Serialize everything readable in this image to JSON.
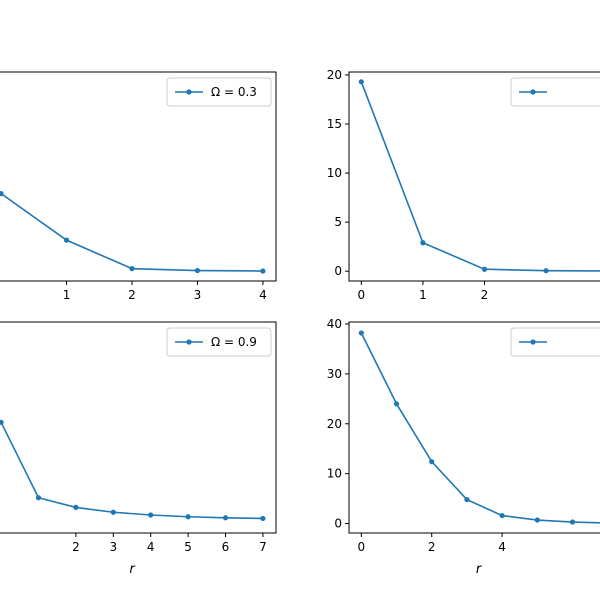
{
  "chart_data": [
    {
      "type": "line",
      "position": "top-left",
      "x": [
        0,
        1,
        2,
        3,
        4
      ],
      "xticks": [
        1,
        2,
        3,
        4
      ],
      "yticks": [],
      "xlim": [
        -0.2,
        4.2
      ],
      "ylim": [
        -1.0,
        21.0
      ],
      "series": [
        {
          "name": "Ω = 0.3",
          "values": [
            8.2,
            3.3,
            0.3,
            0.1,
            0.05
          ]
        }
      ],
      "xlabel": "",
      "ylabel": "",
      "legend": "upper right",
      "color": "#1f77b4",
      "grid": false
    },
    {
      "type": "line",
      "position": "top-right",
      "x": [
        0,
        1,
        2,
        3,
        4
      ],
      "xticks": [
        0,
        1,
        2
      ],
      "yticks": [
        0,
        5,
        10,
        15,
        20
      ],
      "xlim": [
        -0.2,
        4.2
      ],
      "ylim": [
        -1.0,
        20.3
      ],
      "series": [
        {
          "name": "",
          "values": [
            19.3,
            2.9,
            0.2,
            0.05,
            0.02
          ]
        }
      ],
      "xlabel": "",
      "ylabel": "",
      "legend": "upper right",
      "color": "#1f77b4",
      "grid": false
    },
    {
      "type": "line",
      "position": "bottom-left",
      "x": [
        0,
        1,
        2,
        3,
        4,
        5,
        6,
        7
      ],
      "xticks": [
        2,
        3,
        4,
        5,
        6,
        7
      ],
      "yticks": [],
      "xlim": [
        -0.35,
        7.35
      ],
      "ylim": [
        -0.4,
        5.7
      ],
      "series": [
        {
          "name": "Ω = 0.9",
          "values": [
            2.8,
            0.62,
            0.34,
            0.2,
            0.12,
            0.07,
            0.04,
            0.02
          ]
        }
      ],
      "xlabel": "r",
      "ylabel": "",
      "legend": "upper right",
      "color": "#1f77b4",
      "grid": false
    },
    {
      "type": "line",
      "position": "bottom-right",
      "x": [
        0,
        1,
        2,
        3,
        4,
        5,
        6,
        7
      ],
      "xticks": [
        0,
        2,
        4
      ],
      "yticks": [
        0,
        10,
        20,
        30,
        40
      ],
      "xlim": [
        -0.35,
        7.35
      ],
      "ylim": [
        -1.9,
        40.4
      ],
      "series": [
        {
          "name": "",
          "values": [
            38.2,
            24.0,
            12.4,
            4.8,
            1.6,
            0.7,
            0.3,
            0.1
          ]
        }
      ],
      "xlabel": "r",
      "ylabel": "",
      "legend": "upper right",
      "color": "#1f77b4",
      "grid": false
    }
  ]
}
